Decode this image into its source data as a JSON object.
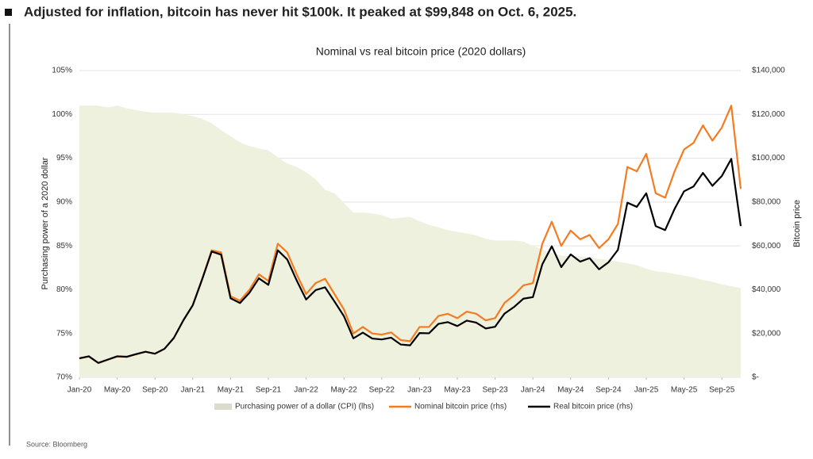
{
  "chart_data": {
    "type": "line",
    "headline": "Adjusted for inflation, bitcoin has never hit $100k. It peaked at $99,848 on Oct. 6, 2025.",
    "title": "Nominal vs real bitcoin price (2020 dollars)",
    "ylabel": "Purchasing power of a 2020 dollar",
    "y2label": "Bitcoin price",
    "source": "Source: Bloomberg",
    "x": [
      "2020-01",
      "2020-02",
      "2020-03",
      "2020-04",
      "2020-05",
      "2020-06",
      "2020-07",
      "2020-08",
      "2020-09",
      "2020-10",
      "2020-11",
      "2020-12",
      "2021-01",
      "2021-02",
      "2021-03",
      "2021-04",
      "2021-05",
      "2021-06",
      "2021-07",
      "2021-08",
      "2021-09",
      "2021-10",
      "2021-11",
      "2021-12",
      "2022-01",
      "2022-02",
      "2022-03",
      "2022-04",
      "2022-05",
      "2022-06",
      "2022-07",
      "2022-08",
      "2022-09",
      "2022-10",
      "2022-11",
      "2022-12",
      "2023-01",
      "2023-02",
      "2023-03",
      "2023-04",
      "2023-05",
      "2023-06",
      "2023-07",
      "2023-08",
      "2023-09",
      "2023-10",
      "2023-11",
      "2023-12",
      "2024-01",
      "2024-02",
      "2024-03",
      "2024-04",
      "2024-05",
      "2024-06",
      "2024-07",
      "2024-08",
      "2024-09",
      "2024-10",
      "2024-11",
      "2024-12",
      "2025-01",
      "2025-02",
      "2025-03",
      "2025-04",
      "2025-05",
      "2025-06",
      "2025-07",
      "2025-08",
      "2025-09",
      "2025-10",
      "2025-11"
    ],
    "xlim": [
      "2020-01",
      "2025-11"
    ],
    "xticks": [
      {
        "value": "2020-01",
        "label": "Jan-20"
      },
      {
        "value": "2020-05",
        "label": "May-20"
      },
      {
        "value": "2020-09",
        "label": "Sep-20"
      },
      {
        "value": "2021-01",
        "label": "Jan-21"
      },
      {
        "value": "2021-05",
        "label": "May-21"
      },
      {
        "value": "2021-09",
        "label": "Sep-21"
      },
      {
        "value": "2022-01",
        "label": "Jan-22"
      },
      {
        "value": "2022-05",
        "label": "May-22"
      },
      {
        "value": "2022-09",
        "label": "Sep-22"
      },
      {
        "value": "2023-01",
        "label": "Jan-23"
      },
      {
        "value": "2023-05",
        "label": "May-23"
      },
      {
        "value": "2023-09",
        "label": "Sep-23"
      },
      {
        "value": "2024-01",
        "label": "Jan-24"
      },
      {
        "value": "2024-05",
        "label": "May-24"
      },
      {
        "value": "2024-09",
        "label": "Sep-24"
      },
      {
        "value": "2025-01",
        "label": "Jan-25"
      },
      {
        "value": "2025-05",
        "label": "May-25"
      },
      {
        "value": "2025-09",
        "label": "Sep-25"
      }
    ],
    "ylim": [
      70,
      105
    ],
    "yticks": [
      {
        "value": 70,
        "label": "70%"
      },
      {
        "value": 75,
        "label": "75%"
      },
      {
        "value": 80,
        "label": "80%"
      },
      {
        "value": 85,
        "label": "85%"
      },
      {
        "value": 90,
        "label": "90%"
      },
      {
        "value": 95,
        "label": "95%"
      },
      {
        "value": 100,
        "label": "100%"
      },
      {
        "value": 105,
        "label": "105%"
      }
    ],
    "y2lim": [
      0,
      140000
    ],
    "y2ticks": [
      {
        "value": 0,
        "label": "$-"
      },
      {
        "value": 20000,
        "label": "$20,000"
      },
      {
        "value": 40000,
        "label": "$40,000"
      },
      {
        "value": 60000,
        "label": "$60,000"
      },
      {
        "value": 80000,
        "label": "$80,000"
      },
      {
        "value": 100000,
        "label": "$100,000"
      },
      {
        "value": 120000,
        "label": "$120,000"
      },
      {
        "value": 140000,
        "label": "$140,000"
      }
    ],
    "grid": true,
    "legend": "bottom",
    "series": [
      {
        "name": "Purchasing power of a dollar (CPI) (lhs)",
        "color": "#eef1de",
        "kind": "area",
        "values": [
          101,
          101,
          101,
          100.8,
          101,
          100.7,
          100.5,
          100.3,
          100.2,
          100.2,
          100.2,
          100,
          99.8,
          99.5,
          99,
          98.2,
          97.5,
          96.8,
          96.4,
          96.1,
          95.9,
          95.1,
          94.4,
          94,
          93.4,
          92.6,
          91.4,
          91,
          89.9,
          88.8,
          88.8,
          88.7,
          88.5,
          88.1,
          88.2,
          88.3,
          87.8,
          87.4,
          87.1,
          86.8,
          86.6,
          86.4,
          86.2,
          85.8,
          85.6,
          85.6,
          85.6,
          85.5,
          85,
          84.6,
          84.2,
          83.9,
          83.8,
          83.8,
          83.7,
          83.5,
          83.4,
          83.2,
          83,
          82.8,
          82.4,
          82.1,
          82,
          81.8,
          81.6,
          81.4,
          81.1,
          80.9,
          80.6,
          80.4,
          80.2
        ]
      },
      {
        "name": "Nominal bitcoin price (rhs)",
        "color": "#f47b20",
        "axis": "y2",
        "values": [
          8600,
          9500,
          6500,
          8000,
          9500,
          9300,
          10500,
          11700,
          10800,
          13000,
          18000,
          26000,
          33000,
          45000,
          58000,
          57000,
          37000,
          35000,
          40000,
          47000,
          44000,
          61000,
          57000,
          47000,
          38000,
          43000,
          45000,
          38000,
          31000,
          20000,
          23000,
          20000,
          19500,
          20500,
          17000,
          16500,
          23000,
          23000,
          28000,
          29000,
          27000,
          30000,
          29000,
          26000,
          27000,
          34000,
          37500,
          42000,
          43000,
          61000,
          71000,
          60000,
          67000,
          63000,
          65000,
          59000,
          63000,
          70000,
          96000,
          94000,
          102000,
          84000,
          82000,
          94000,
          104000,
          107000,
          115000,
          108000,
          114000,
          124000,
          86000
        ]
      },
      {
        "name": "Real bitcoin price (rhs)",
        "color": "#000000",
        "axis": "y2",
        "values": [
          8700,
          9600,
          6600,
          8100,
          9600,
          9400,
          10600,
          11700,
          10800,
          13000,
          18000,
          26000,
          32900,
          44800,
          57400,
          56000,
          36100,
          33900,
          38600,
          45200,
          42200,
          58000,
          53800,
          44200,
          35500,
          39800,
          41100,
          34600,
          27900,
          17800,
          20400,
          17700,
          17300,
          18100,
          15000,
          14600,
          20200,
          20100,
          24400,
          25200,
          23400,
          25900,
          25000,
          22300,
          23100,
          29100,
          32100,
          35900,
          36600,
          51600,
          59800,
          50300,
          56100,
          52800,
          54400,
          49300,
          52500,
          58200,
          79700,
          77800,
          84000,
          69000,
          67200,
          76900,
          84900,
          87100,
          93300,
          87400,
          91900,
          99700,
          69000
        ]
      }
    ]
  }
}
